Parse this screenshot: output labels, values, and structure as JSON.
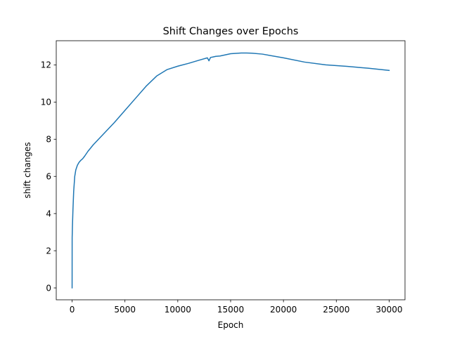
{
  "chart_data": {
    "type": "line",
    "title": "Shift Changes over Epochs",
    "xlabel": "Epoch",
    "ylabel": "shift changes",
    "xlim": [
      -1500,
      31500
    ],
    "ylim": [
      -0.64,
      13.3
    ],
    "xticks": [
      0,
      5000,
      10000,
      15000,
      20000,
      25000,
      30000
    ],
    "yticks": [
      0,
      2,
      4,
      6,
      8,
      10,
      12
    ],
    "grid": false,
    "colors": {
      "line": "#1f77b4",
      "axes": "#000000",
      "background": "#ffffff"
    },
    "series": [
      {
        "x": [
          0,
          5,
          30,
          80,
          150,
          250,
          350,
          500,
          650,
          800,
          1000,
          1200,
          1500,
          2000,
          3000,
          4000,
          5000,
          6000,
          7000,
          8000,
          9000,
          10000,
          11000,
          12000,
          12800,
          12950,
          13100,
          13300,
          13600,
          14000,
          15000,
          16000,
          16500,
          17000,
          18000,
          20000,
          22000,
          24000,
          26000,
          28000,
          30000
        ],
        "y": [
          0.0,
          2.7,
          3.3,
          4.2,
          5.2,
          6.0,
          6.35,
          6.6,
          6.75,
          6.85,
          6.95,
          7.1,
          7.35,
          7.7,
          8.3,
          8.9,
          9.55,
          10.2,
          10.85,
          11.4,
          11.75,
          11.93,
          12.08,
          12.25,
          12.38,
          12.22,
          12.4,
          12.42,
          12.46,
          12.48,
          12.6,
          12.64,
          12.64,
          12.63,
          12.58,
          12.38,
          12.15,
          12.0,
          11.92,
          11.82,
          11.7
        ]
      }
    ]
  }
}
